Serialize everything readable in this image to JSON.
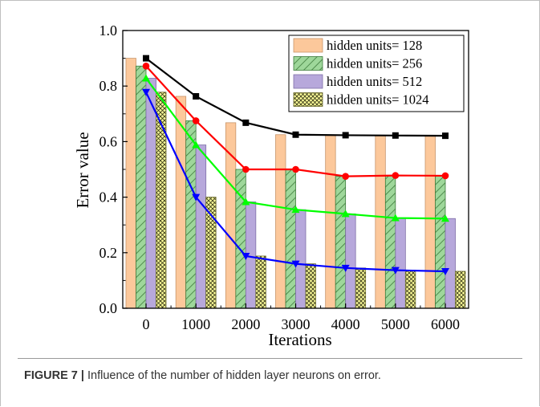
{
  "caption": {
    "label": "FIGURE 7 |",
    "text": " Influence of the number of hidden layer neurons on error."
  },
  "chart_data": {
    "type": "bar",
    "xlabel": "Iterations",
    "ylabel": "Error value",
    "categories": [
      "0",
      "1000",
      "2000",
      "3000",
      "4000",
      "5000",
      "6000"
    ],
    "ylim": [
      0,
      1.0
    ],
    "yticks": [
      0.0,
      0.2,
      0.4,
      0.6,
      0.8,
      1.0
    ],
    "ytick_labels": [
      "0.0",
      "0.2",
      "0.4",
      "0.6",
      "0.8",
      "1.0"
    ],
    "legend_position": "top-right",
    "series": [
      {
        "name": "hidden units= 128",
        "values": [
          0.9,
          0.763,
          0.668,
          0.625,
          0.623,
          0.622,
          0.621
        ],
        "fill": "#fcc89b",
        "pattern": "none",
        "line_color": "#000000",
        "marker": "square"
      },
      {
        "name": "hidden units= 256",
        "values": [
          0.872,
          0.675,
          0.5,
          0.5,
          0.475,
          0.478,
          0.477
        ],
        "fill": "#9ed79a",
        "pattern": "hatch",
        "line_color": "#ff0000",
        "marker": "circle"
      },
      {
        "name": "hidden units= 512",
        "values": [
          0.828,
          0.588,
          0.383,
          0.355,
          0.34,
          0.325,
          0.323
        ],
        "fill": "#b7a8db",
        "pattern": "none",
        "line_color": "#00ff00",
        "marker": "triangle-up"
      },
      {
        "name": "hidden units= 1024",
        "values": [
          0.778,
          0.4,
          0.188,
          0.16,
          0.145,
          0.137,
          0.133
        ],
        "fill": "#fdfd9a",
        "pattern": "crosshatch",
        "line_color": "#0000ff",
        "marker": "triangle-down"
      }
    ]
  }
}
